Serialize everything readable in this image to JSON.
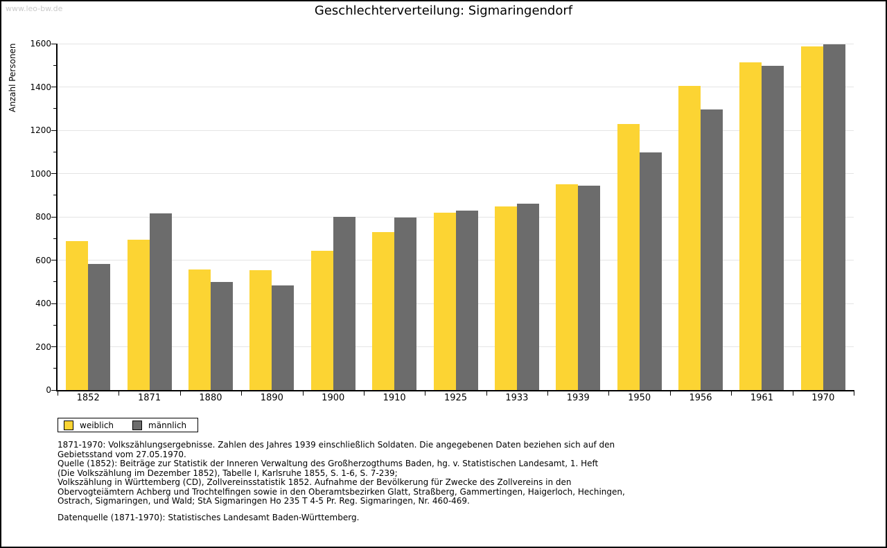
{
  "watermark": "www.leo-bw.de",
  "chart_data": {
    "type": "bar",
    "title": "Geschlechterverteilung: Sigmaringendorf",
    "ylabel": "Anzahl Personen",
    "xlabel": "",
    "ylim": [
      0,
      1600
    ],
    "ytick_step": 200,
    "yminor_step": 100,
    "grid": true,
    "legend_position": "below-left",
    "categories": [
      "1852",
      "1871",
      "1880",
      "1890",
      "1900",
      "1910",
      "1925",
      "1933",
      "1939",
      "1950",
      "1956",
      "1961",
      "1970"
    ],
    "series": [
      {
        "name": "weiblich",
        "color": "#FCD433",
        "values": [
          688,
          694,
          558,
          553,
          642,
          730,
          820,
          847,
          950,
          1230,
          1405,
          1513,
          1588
        ]
      },
      {
        "name": "männlich",
        "color": "#6C6C6C",
        "values": [
          583,
          817,
          500,
          483,
          800,
          798,
          830,
          860,
          943,
          1097,
          1297,
          1497,
          1596
        ]
      }
    ]
  },
  "footnotes": {
    "lines": [
      "1871-1970: Volkszählungsergebnisse. Zahlen des Jahres 1939 einschließlich Soldaten. Die angegebenen Daten beziehen sich auf den",
      "Gebietsstand vom 27.05.1970.",
      "Quelle (1852): Beiträge zur Statistik der Inneren Verwaltung des Großherzogthums Baden, hg. v. Statistischen Landesamt, 1. Heft",
      "(Die Volkszählung im Dezember 1852), Tabelle I, Karlsruhe 1855, S. 1-6, S. 7-239;",
      "Volkszählung in Württemberg (CD), Zollvereinsstatistik 1852. Aufnahme der Bevölkerung für Zwecke des Zollvereins in den",
      "Obervogteiämtern Achberg und Trochtelfingen sowie in den Oberamtsbezirken Glatt, Straßberg, Gammertingen, Haigerloch, Hechingen,",
      "Ostrach, Sigmaringen, und Wald; StA Sigmaringen Ho 235 T 4-5 Pr. Reg. Sigmaringen, Nr. 460-469."
    ],
    "datasource": "Datenquelle (1871-1970): Statistisches Landesamt Baden-Württemberg."
  },
  "colors": {
    "female_bar": "#FCD433",
    "male_bar": "#6C6C6C",
    "gridline": "#E4E4E4",
    "axis": "#000000",
    "watermark_text": "#C9C9C9",
    "background": "#FFFFFF"
  }
}
